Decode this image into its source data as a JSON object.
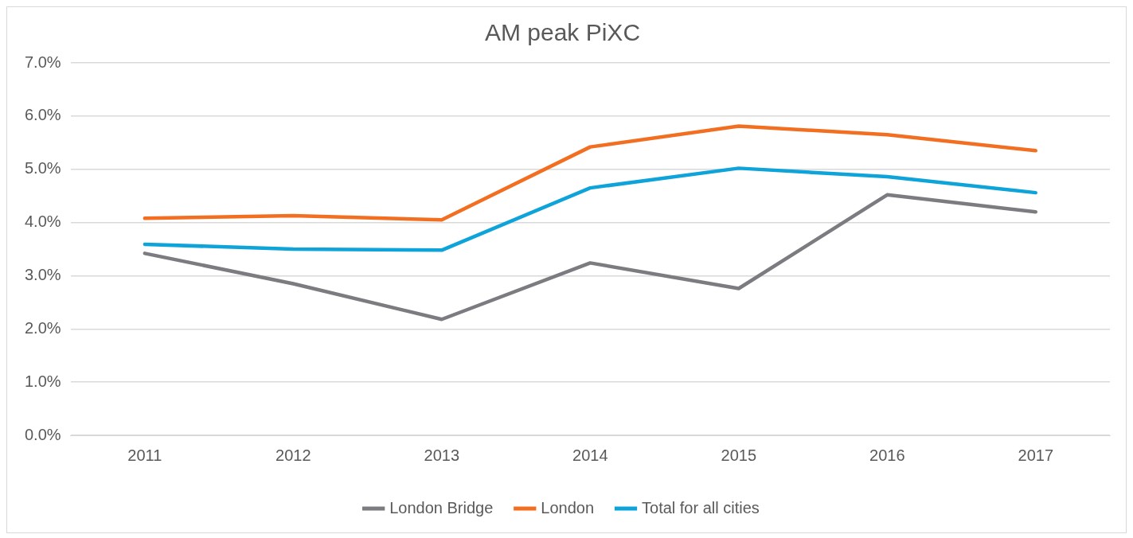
{
  "chart_data": {
    "type": "line",
    "title": "AM peak PiXC",
    "categories": [
      "2011",
      "2012",
      "2013",
      "2014",
      "2015",
      "2016",
      "2017"
    ],
    "series": [
      {
        "name": "London Bridge",
        "color": "#7b7b80",
        "values": [
          3.42,
          2.85,
          2.18,
          3.24,
          2.76,
          4.52,
          4.2
        ]
      },
      {
        "name": "London",
        "color": "#f26f21",
        "values": [
          4.08,
          4.13,
          4.05,
          5.42,
          5.81,
          5.65,
          5.35
        ]
      },
      {
        "name": "Total for all cities",
        "color": "#0ea3d9",
        "values": [
          3.59,
          3.5,
          3.48,
          4.65,
          5.02,
          4.86,
          4.56
        ]
      }
    ],
    "ylim": [
      0,
      7
    ],
    "yticks": [
      {
        "value": 0,
        "label": "0.0%"
      },
      {
        "value": 1,
        "label": "1.0%"
      },
      {
        "value": 2,
        "label": "2.0%"
      },
      {
        "value": 3,
        "label": "3.0%"
      },
      {
        "value": 4,
        "label": "4.0%"
      },
      {
        "value": 5,
        "label": "5.0%"
      },
      {
        "value": 6,
        "label": "6.0%"
      },
      {
        "value": 7,
        "label": "7.0%"
      }
    ],
    "grid": "y",
    "legend": "bottom",
    "marker": "none",
    "line_style": "solid"
  }
}
